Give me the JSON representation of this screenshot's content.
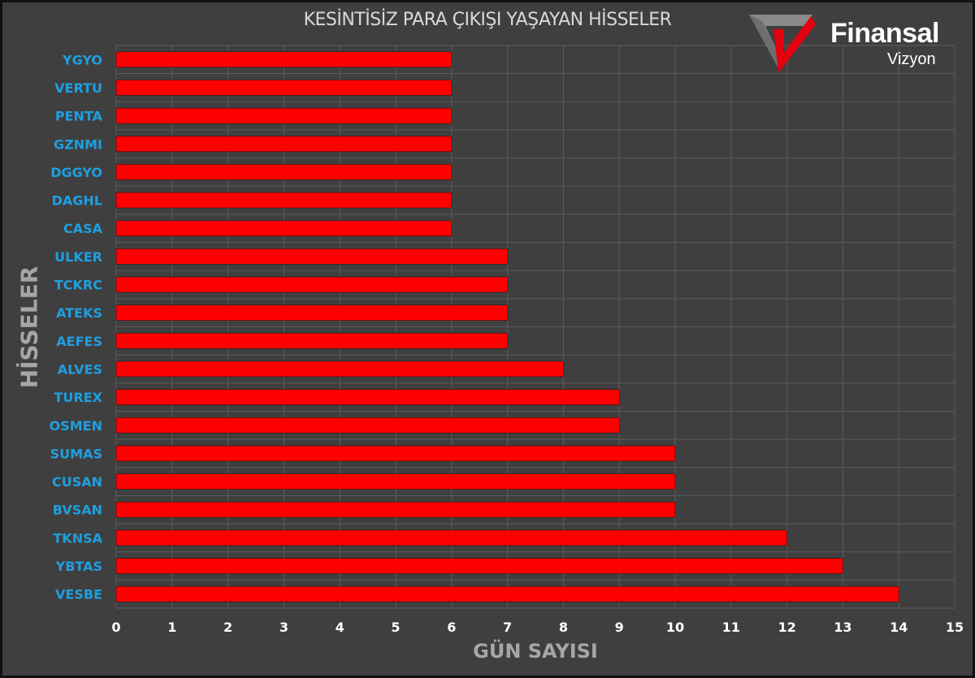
{
  "brand": {
    "name": "Finansal",
    "sub": "Vizyon"
  },
  "colors": {
    "bar": "#ff0000",
    "background": "#3f3f3f",
    "category_label": "#1f9fe0",
    "tick_label": "#ffffff",
    "grid": "#5c5c5c"
  },
  "chart_data": {
    "type": "bar",
    "orientation": "horizontal",
    "title": "KESİNTİSİZ PARA ÇIKIŞI YAŞAYAN HİSSELER",
    "xlabel": "GÜN SAYISI",
    "ylabel": "HİSSELER",
    "categories": [
      "YGYO",
      "VERTU",
      "PENTA",
      "GZNMI",
      "DGGYO",
      "DAGHL",
      "CASA",
      "ULKER",
      "TCKRC",
      "ATEKS",
      "AEFES",
      "ALVES",
      "TUREX",
      "OSMEN",
      "SUMAS",
      "CUSAN",
      "BVSAN",
      "TKNSA",
      "YBTAS",
      "VESBE"
    ],
    "values": [
      6,
      6,
      6,
      6,
      6,
      6,
      6,
      7,
      7,
      7,
      7,
      8,
      9,
      9,
      10,
      10,
      10,
      12,
      13,
      14
    ],
    "xlim": [
      0,
      15
    ],
    "xticks": [
      0,
      1,
      2,
      3,
      4,
      5,
      6,
      7,
      8,
      9,
      10,
      11,
      12,
      13,
      14,
      15
    ],
    "grid": true,
    "legend": "none"
  }
}
